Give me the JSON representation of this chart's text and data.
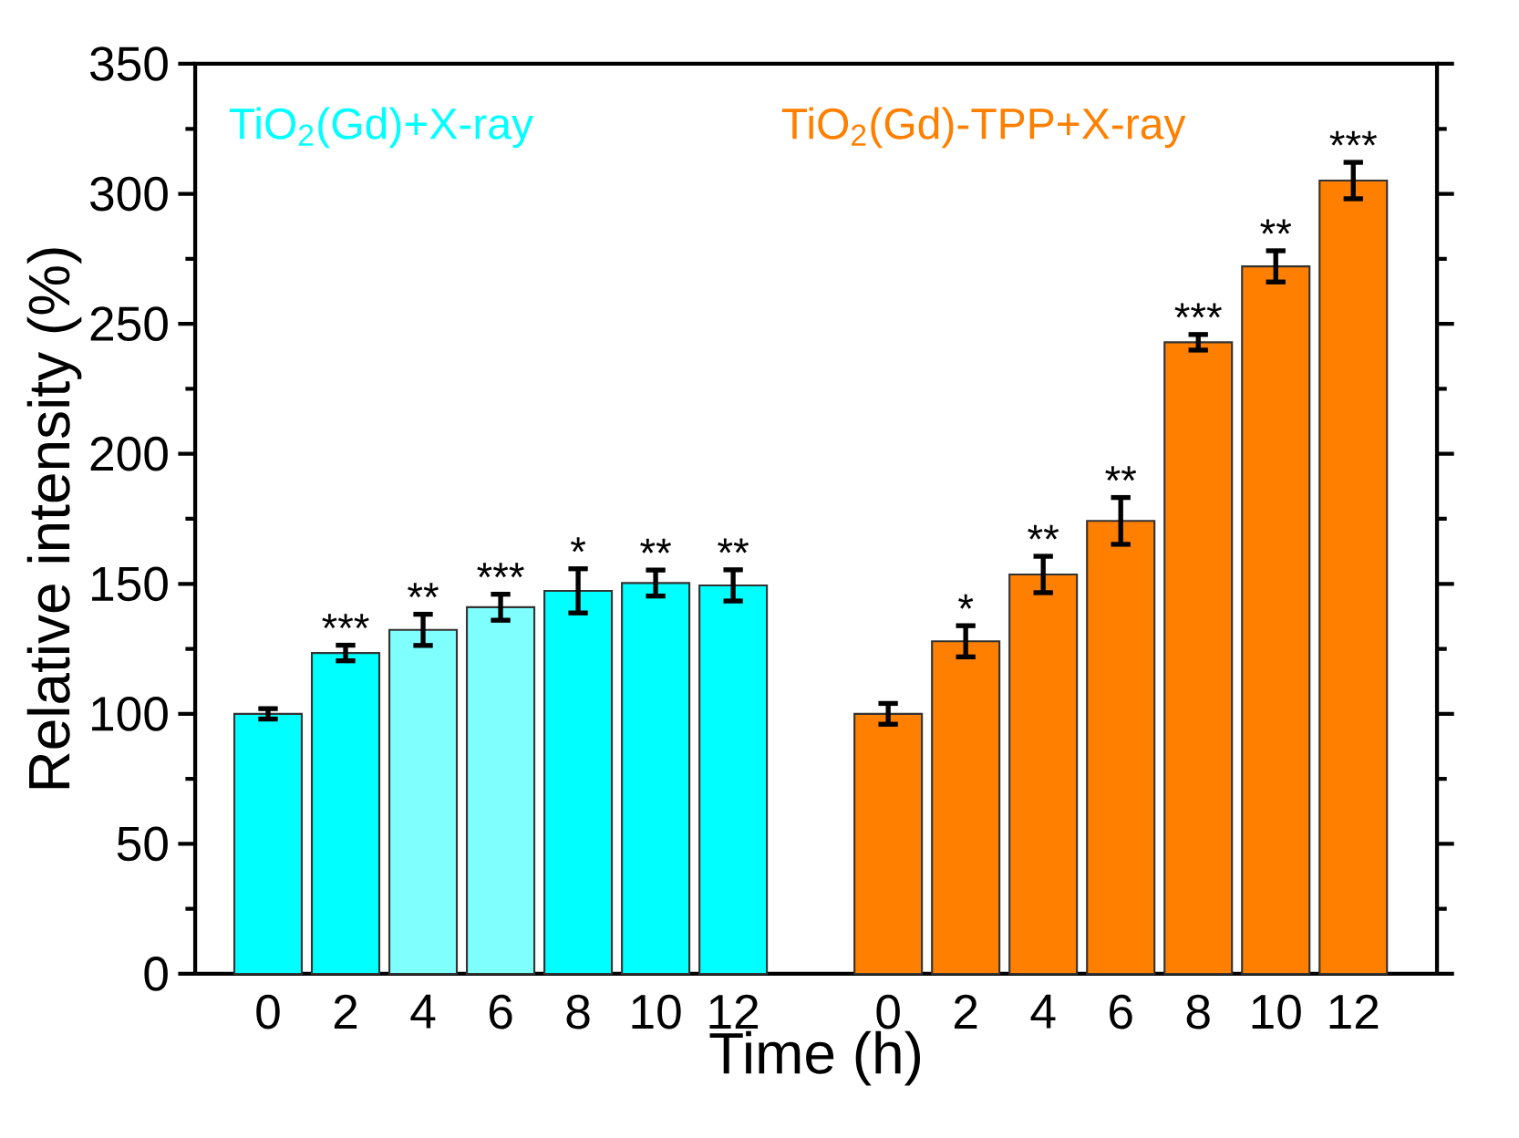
{
  "chart_data": {
    "type": "bar",
    "xlabel": "Time (h)",
    "ylabel": "Relative intensity (%)",
    "categories": [
      "0",
      "2",
      "4",
      "6",
      "8",
      "10",
      "12",
      null,
      "0",
      "2",
      "4",
      "6",
      "8",
      "10",
      "12"
    ],
    "series": [
      {
        "name": "TiO$_{2}$(Gd)+X-ray",
        "color": "#00ffff",
        "colors": [
          "#00ffff",
          "#00ffff",
          "#80ffff",
          "#80ffff",
          "#00ffff",
          "#00ffff",
          "#00ffff",
          null,
          null,
          null,
          null,
          null,
          null,
          null,
          null
        ],
        "values": [
          100,
          123.4,
          132.3,
          141,
          147.3,
          150.3,
          149.4,
          null,
          null,
          null,
          null,
          null,
          null,
          null,
          null
        ],
        "errors": [
          2,
          3,
          6,
          5,
          8.5,
          5,
          6,
          null,
          null,
          null,
          null,
          null,
          null,
          null,
          null
        ],
        "value_labels": [
          null,
          "***",
          "**",
          "***",
          "*",
          "**",
          "**",
          null,
          null,
          null,
          null,
          null,
          null,
          null,
          null
        ]
      },
      {
        "name": "TiO$_{2}$(Gd)-TPP+X-ray",
        "color": "#ff8000",
        "values": [
          null,
          null,
          null,
          null,
          null,
          null,
          null,
          null,
          100,
          127.9,
          153.6,
          174.2,
          242.9,
          272.1,
          305.1
        ],
        "errors": [
          null,
          null,
          null,
          null,
          null,
          null,
          null,
          null,
          4,
          6,
          7,
          9,
          3,
          6,
          7
        ],
        "value_labels": [
          null,
          null,
          null,
          null,
          null,
          null,
          null,
          null,
          null,
          "*",
          "**",
          "**",
          "***",
          "**",
          "***"
        ]
      }
    ],
    "ylim": [
      0,
      350
    ],
    "yticks": [
      0,
      50,
      100,
      150,
      200,
      250,
      300,
      350
    ],
    "legend": "top",
    "grid": false
  }
}
